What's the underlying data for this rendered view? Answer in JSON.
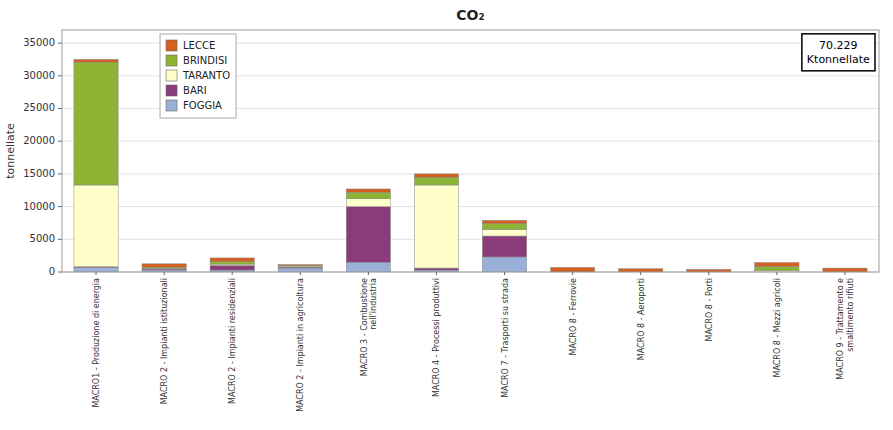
{
  "chart_data": {
    "type": "bar",
    "stacked": true,
    "title": "CO₂",
    "ylabel": "tonnellate",
    "annotation": "70.229\nKtonnellate",
    "categories": [
      "MACRO1 - Produzione di energia",
      "MACRO 2 - Impianti istituzionali",
      "MACRO 2 - Impianti residenziali",
      "MACRO 2 - Impianti in agricoltura",
      "MACRO 3 - Combustione\nnell'industria",
      "MACRO 4 - Processi produttivi",
      "MACRO 7 - Trasporti su strada",
      "MACRO 8 - Ferrovie",
      "MACRO 8 - Aeroporti",
      "MACRO 8 - Porti",
      "MACRO 8 - Mezzi agricoli",
      "MACRO 9 - Trattamento e\nsmaltimento rifiuti"
    ],
    "series": [
      {
        "name": "FOGGIA",
        "color": "#9bb0d8",
        "values": [
          700,
          300,
          300,
          600,
          1500,
          300,
          2300,
          0,
          0,
          0,
          0,
          0
        ]
      },
      {
        "name": "BARI",
        "color": "#8b3a7a",
        "values": [
          100,
          150,
          700,
          150,
          8500,
          300,
          3200,
          0,
          0,
          0,
          0,
          0
        ]
      },
      {
        "name": "TARANTO",
        "color": "#ffffcc",
        "values": [
          12500,
          100,
          200,
          150,
          1200,
          12700,
          1000,
          0,
          0,
          0,
          250,
          0
        ]
      },
      {
        "name": "BRINDISI",
        "color": "#8db435",
        "values": [
          18800,
          150,
          400,
          100,
          1000,
          1200,
          900,
          0,
          0,
          0,
          600,
          0
        ]
      },
      {
        "name": "LECCE",
        "color": "#d45f1e",
        "values": [
          400,
          550,
          550,
          150,
          500,
          500,
          500,
          700,
          500,
          400,
          600,
          600
        ]
      }
    ],
    "ylim": [
      0,
      37000
    ],
    "yticks": [
      0,
      5000,
      10000,
      15000,
      20000,
      25000,
      30000,
      35000
    ],
    "grid": true,
    "legend": "upper left"
  }
}
